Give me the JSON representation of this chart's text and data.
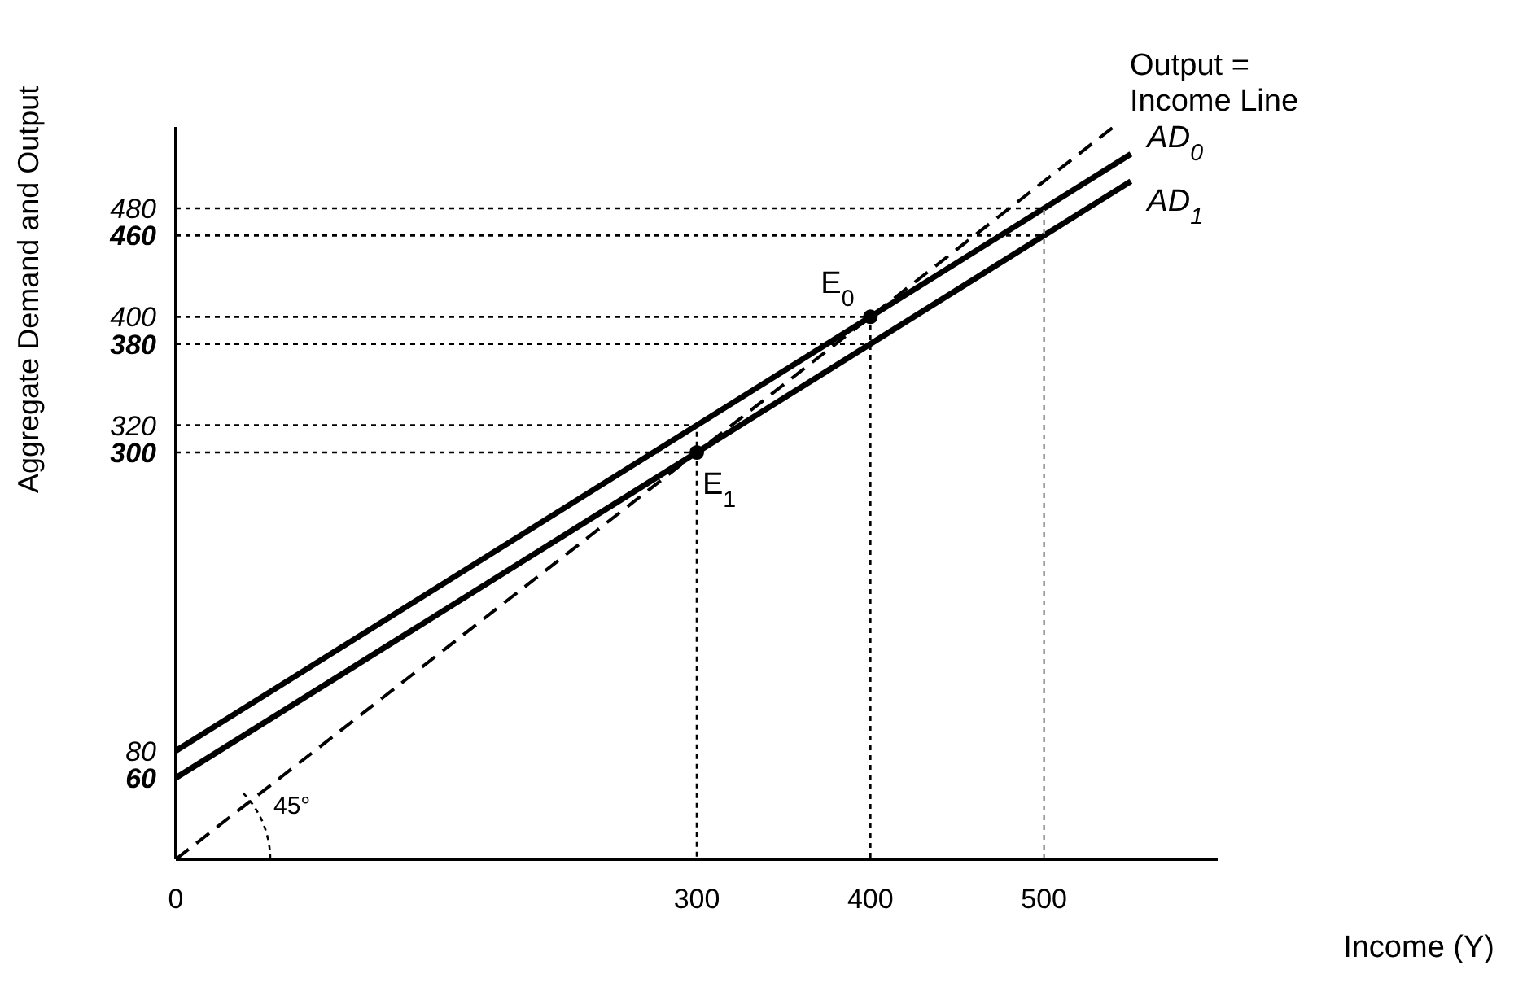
{
  "chart_data": {
    "type": "line",
    "xlabel": "Income (Y)",
    "ylabel": "Aggregate Demand and Output",
    "xlim": [
      0,
      600
    ],
    "ylim": [
      0,
      540
    ],
    "xticks": [
      0,
      300,
      400,
      500
    ],
    "yticks": [
      60,
      80,
      300,
      320,
      380,
      400,
      460,
      480
    ],
    "marker": "none",
    "annotations": [
      "45°"
    ],
    "series": [
      {
        "name": "Output = Income Line",
        "color": "#000000",
        "line_style": "dashed",
        "x": [
          0,
          540
        ],
        "values": [
          0,
          540
        ]
      },
      {
        "name": "AD$_{0}$",
        "color": "#000000",
        "line_style": "solid",
        "x": [
          0,
          550
        ],
        "values": [
          80,
          520
        ]
      },
      {
        "name": "AD$_{1}$",
        "color": "#000000",
        "line_style": "solid",
        "x": [
          0,
          550
        ],
        "values": [
          60,
          500
        ]
      },
      {
        "color": "#000000",
        "line_style": "dotted",
        "x": [
          0,
          300,
          300
        ],
        "values": [
          320,
          320,
          0
        ]
      },
      {
        "color": "#000000",
        "line_style": "dotted",
        "x": [
          0,
          300
        ],
        "values": [
          300,
          300
        ]
      },
      {
        "color": "#000000",
        "line_style": "dotted",
        "x": [
          0,
          400,
          400
        ],
        "values": [
          400,
          400,
          0
        ]
      },
      {
        "color": "#000000",
        "line_style": "dotted",
        "x": [
          0,
          400
        ],
        "values": [
          380,
          380
        ]
      },
      {
        "color": "#000000",
        "line_style": "dotted",
        "x": [
          0,
          500
        ],
        "values": [
          480,
          480
        ]
      },
      {
        "color": "#000000",
        "line_style": "dotted",
        "x": [
          0,
          500
        ],
        "values": [
          460,
          460
        ]
      },
      {
        "color": "#999999",
        "line_style": "dotted",
        "x": [
          500,
          500
        ],
        "values": [
          0,
          480
        ]
      },
      {
        "name": "E$_{0}$",
        "type": "scatter",
        "marker": "circle",
        "color": "#000000",
        "x": [
          400
        ],
        "values": [
          400
        ]
      },
      {
        "name": "E$_{1}$",
        "type": "scatter",
        "marker": "circle",
        "color": "#000000",
        "x": [
          300
        ],
        "values": [
          300
        ]
      }
    ]
  }
}
